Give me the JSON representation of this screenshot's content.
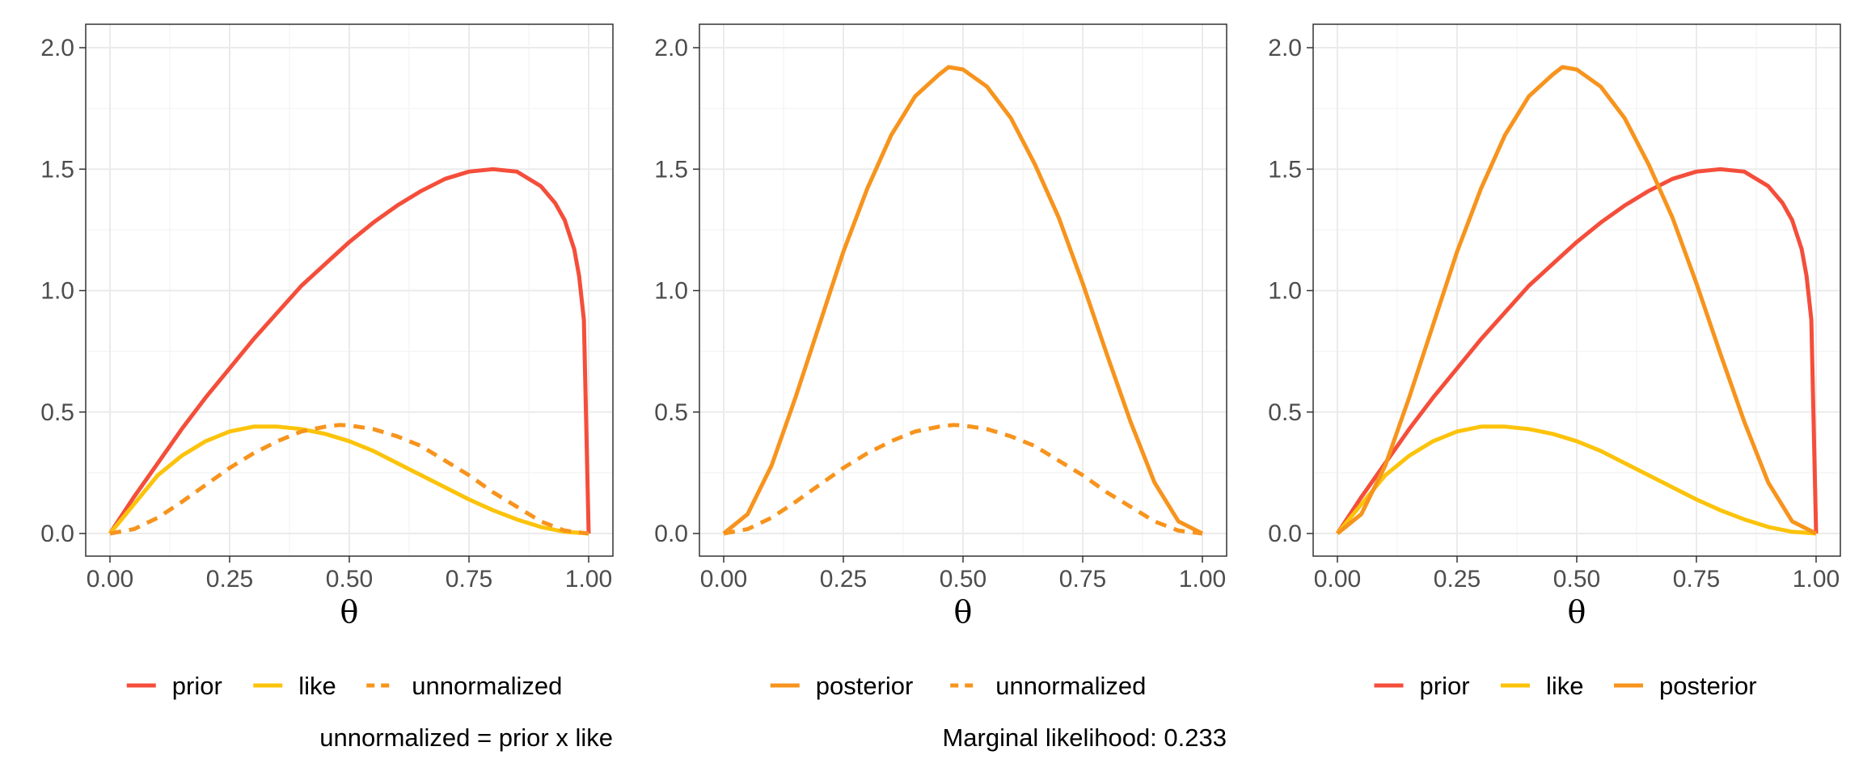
{
  "colors": {
    "prior": "#F44E3B",
    "like": "#FCC30B",
    "unnormalized": "#F7941D",
    "posterior": "#F7941D",
    "panel_border": "#333333",
    "grid": "#EBEBEB"
  },
  "chart_data": [
    {
      "type": "line",
      "title": "",
      "xlabel": "θ",
      "ylabel": "",
      "xlim": [
        0,
        1
      ],
      "ylim": [
        0,
        2
      ],
      "x_ticks": [
        "0.00",
        "0.25",
        "0.50",
        "0.75",
        "1.00"
      ],
      "y_ticks": [
        "0.0",
        "0.5",
        "1.0",
        "1.5",
        "2.0"
      ],
      "grid": true,
      "legend_position": "bottom",
      "caption": "unnormalized = prior x like",
      "series": [
        {
          "name": "prior",
          "color_key": "prior",
          "dash": "solid",
          "x": [
            0,
            0.05,
            0.1,
            0.15,
            0.2,
            0.25,
            0.3,
            0.35,
            0.4,
            0.45,
            0.5,
            0.55,
            0.6,
            0.65,
            0.7,
            0.75,
            0.8,
            0.85,
            0.9,
            0.93,
            0.95,
            0.97,
            0.98,
            0.99,
            1.0
          ],
          "y": [
            0,
            0.15,
            0.29,
            0.43,
            0.56,
            0.68,
            0.8,
            0.91,
            1.02,
            1.11,
            1.2,
            1.28,
            1.35,
            1.41,
            1.46,
            1.49,
            1.5,
            1.49,
            1.43,
            1.36,
            1.29,
            1.17,
            1.06,
            0.88,
            0
          ]
        },
        {
          "name": "like",
          "color_key": "like",
          "dash": "solid",
          "x": [
            0,
            0.05,
            0.1,
            0.15,
            0.2,
            0.25,
            0.3,
            0.333,
            0.35,
            0.4,
            0.45,
            0.5,
            0.55,
            0.6,
            0.65,
            0.7,
            0.75,
            0.8,
            0.85,
            0.9,
            0.95,
            1.0
          ],
          "y": [
            0,
            0.12,
            0.24,
            0.32,
            0.38,
            0.42,
            0.44,
            0.44,
            0.44,
            0.43,
            0.41,
            0.38,
            0.34,
            0.29,
            0.24,
            0.19,
            0.14,
            0.096,
            0.058,
            0.027,
            0.007,
            0
          ]
        },
        {
          "name": "unnormalized",
          "color_key": "unnormalized",
          "dash": "dashed",
          "x": [
            0,
            0.05,
            0.1,
            0.15,
            0.2,
            0.25,
            0.3,
            0.35,
            0.4,
            0.45,
            0.48,
            0.5,
            0.55,
            0.6,
            0.65,
            0.7,
            0.75,
            0.8,
            0.85,
            0.9,
            0.95,
            1.0
          ],
          "y": [
            0,
            0.018,
            0.065,
            0.13,
            0.2,
            0.27,
            0.33,
            0.38,
            0.42,
            0.44,
            0.447,
            0.445,
            0.43,
            0.4,
            0.36,
            0.3,
            0.24,
            0.17,
            0.11,
            0.05,
            0.012,
            0
          ]
        }
      ]
    },
    {
      "type": "line",
      "title": "",
      "xlabel": "θ",
      "ylabel": "",
      "xlim": [
        0,
        1
      ],
      "ylim": [
        0,
        2
      ],
      "x_ticks": [
        "0.00",
        "0.25",
        "0.50",
        "0.75",
        "1.00"
      ],
      "y_ticks": [
        "0.0",
        "0.5",
        "1.0",
        "1.5",
        "2.0"
      ],
      "grid": true,
      "legend_position": "bottom",
      "caption": "Marginal likelihood: 0.233",
      "series": [
        {
          "name": "posterior",
          "color_key": "posterior",
          "dash": "solid",
          "x": [
            0,
            0.05,
            0.1,
            0.15,
            0.2,
            0.25,
            0.3,
            0.35,
            0.4,
            0.45,
            0.47,
            0.5,
            0.55,
            0.6,
            0.65,
            0.7,
            0.75,
            0.8,
            0.85,
            0.9,
            0.95,
            1.0
          ],
          "y": [
            0,
            0.08,
            0.28,
            0.56,
            0.86,
            1.16,
            1.42,
            1.64,
            1.8,
            1.89,
            1.92,
            1.91,
            1.84,
            1.71,
            1.52,
            1.3,
            1.03,
            0.74,
            0.46,
            0.21,
            0.05,
            0
          ]
        },
        {
          "name": "unnormalized",
          "color_key": "unnormalized",
          "dash": "dashed",
          "x": [
            0,
            0.05,
            0.1,
            0.15,
            0.2,
            0.25,
            0.3,
            0.35,
            0.4,
            0.45,
            0.48,
            0.5,
            0.55,
            0.6,
            0.65,
            0.7,
            0.75,
            0.8,
            0.85,
            0.9,
            0.95,
            1.0
          ],
          "y": [
            0,
            0.018,
            0.065,
            0.13,
            0.2,
            0.27,
            0.33,
            0.38,
            0.42,
            0.44,
            0.447,
            0.445,
            0.43,
            0.4,
            0.36,
            0.3,
            0.24,
            0.17,
            0.11,
            0.05,
            0.012,
            0
          ]
        }
      ]
    },
    {
      "type": "line",
      "title": "",
      "xlabel": "θ",
      "ylabel": "",
      "xlim": [
        0,
        1
      ],
      "ylim": [
        0,
        2
      ],
      "x_ticks": [
        "0.00",
        "0.25",
        "0.50",
        "0.75",
        "1.00"
      ],
      "y_ticks": [
        "0.0",
        "0.5",
        "1.0",
        "1.5",
        "2.0"
      ],
      "grid": true,
      "legend_position": "bottom",
      "caption": "",
      "series": [
        {
          "name": "prior",
          "color_key": "prior",
          "dash": "solid",
          "x": [
            0,
            0.05,
            0.1,
            0.15,
            0.2,
            0.25,
            0.3,
            0.35,
            0.4,
            0.45,
            0.5,
            0.55,
            0.6,
            0.65,
            0.7,
            0.75,
            0.8,
            0.85,
            0.9,
            0.93,
            0.95,
            0.97,
            0.98,
            0.99,
            1.0
          ],
          "y": [
            0,
            0.15,
            0.29,
            0.43,
            0.56,
            0.68,
            0.8,
            0.91,
            1.02,
            1.11,
            1.2,
            1.28,
            1.35,
            1.41,
            1.46,
            1.49,
            1.5,
            1.49,
            1.43,
            1.36,
            1.29,
            1.17,
            1.06,
            0.88,
            0
          ]
        },
        {
          "name": "like",
          "color_key": "like",
          "dash": "solid",
          "x": [
            0,
            0.05,
            0.1,
            0.15,
            0.2,
            0.25,
            0.3,
            0.333,
            0.35,
            0.4,
            0.45,
            0.5,
            0.55,
            0.6,
            0.65,
            0.7,
            0.75,
            0.8,
            0.85,
            0.9,
            0.95,
            1.0
          ],
          "y": [
            0,
            0.12,
            0.24,
            0.32,
            0.38,
            0.42,
            0.44,
            0.44,
            0.44,
            0.43,
            0.41,
            0.38,
            0.34,
            0.29,
            0.24,
            0.19,
            0.14,
            0.096,
            0.058,
            0.027,
            0.007,
            0
          ]
        },
        {
          "name": "posterior",
          "color_key": "posterior",
          "dash": "solid",
          "x": [
            0,
            0.05,
            0.1,
            0.15,
            0.2,
            0.25,
            0.3,
            0.35,
            0.4,
            0.45,
            0.47,
            0.5,
            0.55,
            0.6,
            0.65,
            0.7,
            0.75,
            0.8,
            0.85,
            0.9,
            0.95,
            1.0
          ],
          "y": [
            0,
            0.08,
            0.28,
            0.56,
            0.86,
            1.16,
            1.42,
            1.64,
            1.8,
            1.89,
            1.92,
            1.91,
            1.84,
            1.71,
            1.52,
            1.3,
            1.03,
            0.74,
            0.46,
            0.21,
            0.05,
            0
          ]
        }
      ]
    }
  ]
}
